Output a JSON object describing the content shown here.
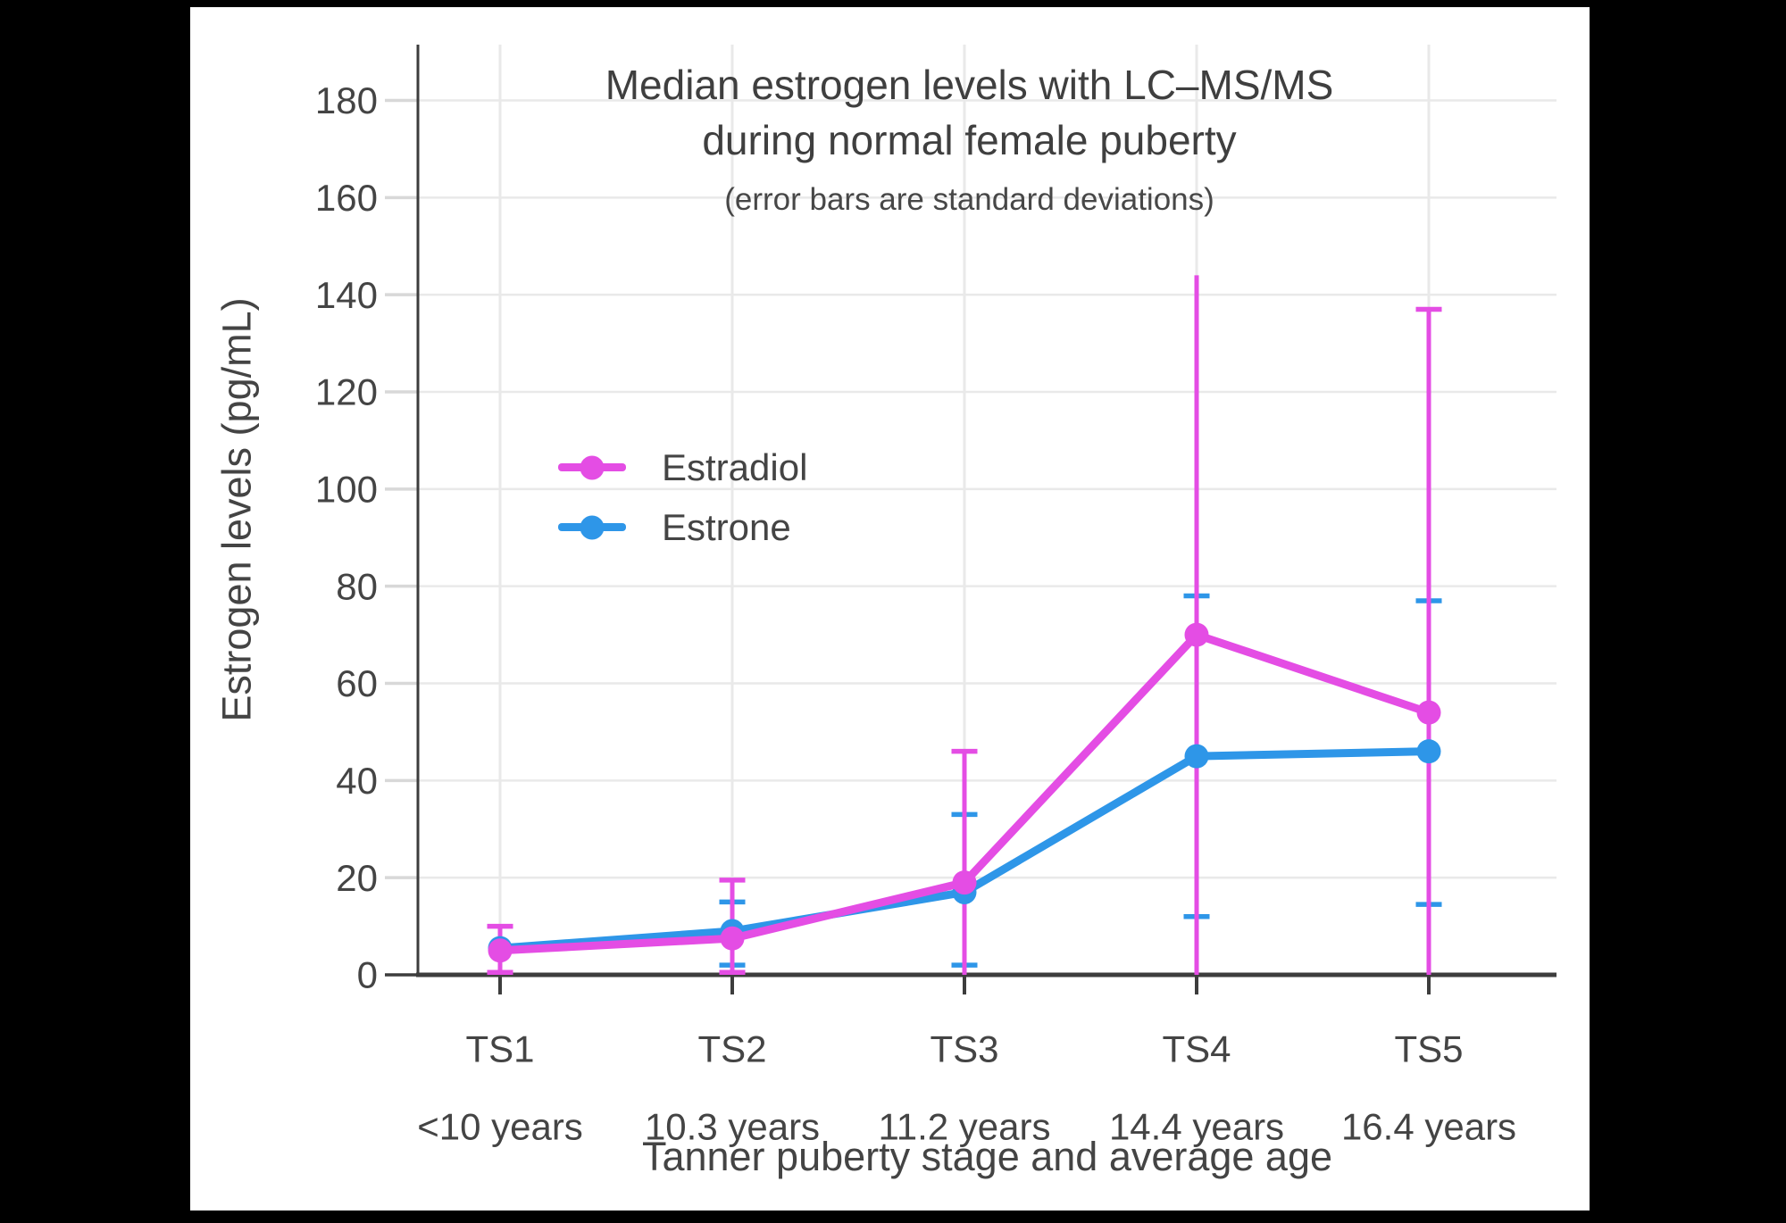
{
  "page": {
    "background_color": "#000000",
    "canvas_color": "#ffffff"
  },
  "chart_data": {
    "type": "line",
    "title_line1": "Median estrogen levels with LC–MS/MS",
    "title_line2": "during normal female puberty",
    "subtitle": "(error bars are standard deviations)",
    "xlabel": "Tanner puberty stage and average age",
    "ylabel": "Estrogen levels (pg/mL)",
    "ylim": [
      0,
      190
    ],
    "yticks": [
      0,
      20,
      40,
      60,
      80,
      100,
      120,
      140,
      160,
      180
    ],
    "grid": true,
    "legend_position": "inside-upper-left",
    "categories": [
      "TS1",
      "TS2",
      "TS3",
      "TS4",
      "TS5"
    ],
    "category_ages": [
      "<10 years",
      "10.3 years",
      "11.2 years",
      "14.4 years",
      "16.4 years"
    ],
    "legend_order": [
      "Estradiol",
      "Estrone"
    ],
    "series": [
      {
        "name": "Estrone",
        "color": "#2E96E8",
        "values": [
          5.5,
          9,
          17,
          45,
          46
        ],
        "error_low": [
          null,
          2,
          2,
          12,
          14.5
        ],
        "error_high": [
          null,
          15,
          33,
          78,
          77
        ],
        "error_caps_low": [
          false,
          true,
          true,
          true,
          true
        ],
        "error_caps_high": [
          false,
          true,
          true,
          true,
          true
        ]
      },
      {
        "name": "Estradiol",
        "color": "#E44DE4",
        "values": [
          5,
          7.5,
          19,
          70,
          54
        ],
        "error_low": [
          0.5,
          0.5,
          0,
          0,
          0
        ],
        "error_high": [
          10,
          19.5,
          46,
          144,
          137
        ],
        "error_caps_low": [
          true,
          true,
          false,
          false,
          false
        ],
        "error_caps_high": [
          true,
          true,
          true,
          false,
          true
        ]
      }
    ],
    "style": {
      "grid_color": "#E9E9E9",
      "axis_color": "#3D3D3D",
      "text_color": "#444444",
      "ytick_color": "#D8D8D8"
    }
  }
}
